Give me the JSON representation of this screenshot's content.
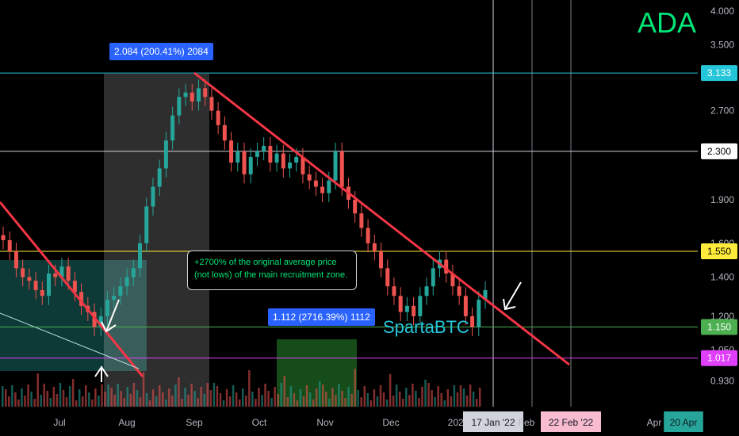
{
  "chart_data": {
    "type": "candlestick",
    "title": "ADA",
    "watermark": "SpartaBTC",
    "y_axis": {
      "min": 0.88,
      "max": 4.05,
      "scale": "log",
      "ticks": [
        0.93,
        1.05,
        1.2,
        1.4,
        1.6,
        1.9,
        2.3,
        2.7,
        3.133,
        3.5,
        4.0
      ],
      "tick_labels": [
        "0.930",
        "1.050",
        "1.200",
        "1.400",
        "1.600",
        "1.900",
        "2.300",
        "2.700",
        "3.133",
        "3.500",
        "4.000"
      ]
    },
    "x_axis": {
      "labels": [
        "Jul",
        "Aug",
        "Sep",
        "Oct",
        "Nov",
        "Dec",
        "2022",
        "17 Jan '22",
        "Feb",
        "22 Feb '22",
        "Apr",
        "20 Apr"
      ]
    },
    "price_levels": [
      {
        "price": 3.133,
        "label": "3.133",
        "color": "#26c6da"
      },
      {
        "price": 2.3,
        "label": "2.300",
        "color": "#d1d4dc"
      },
      {
        "price": 1.55,
        "label": "1.550",
        "color": "#ffeb3b"
      },
      {
        "price": 1.15,
        "label": "1.150",
        "color": "#4caf50"
      },
      {
        "price": 1.017,
        "label": "1.017",
        "color": "#e040fb"
      }
    ],
    "measurements": [
      {
        "label": "2.084 (200.41%) 2084",
        "color": "#2962ff"
      },
      {
        "label": "1.112 (2716.39%) 1112",
        "color": "#2962ff"
      }
    ],
    "annotation": {
      "lines": [
        "+2700% of the original average price",
        "(not lows) of the main recruitment zone."
      ],
      "color": "#00e676"
    },
    "close_series": [
      1.62,
      1.55,
      1.45,
      1.4,
      1.38,
      1.33,
      1.3,
      1.42,
      1.4,
      1.46,
      1.38,
      1.32,
      1.25,
      1.22,
      1.15,
      1.2,
      1.28,
      1.3,
      1.35,
      1.4,
      1.45,
      1.6,
      1.85,
      2.0,
      2.15,
      2.4,
      2.65,
      2.85,
      2.9,
      2.8,
      2.95,
      2.85,
      2.7,
      2.55,
      2.4,
      2.2,
      2.3,
      2.1,
      2.25,
      2.3,
      2.35,
      2.2,
      2.28,
      2.15,
      2.2,
      2.25,
      2.1,
      2.05,
      2.0,
      1.95,
      2.05,
      2.3,
      2.0,
      1.9,
      1.8,
      1.7,
      1.6,
      1.55,
      1.45,
      1.35,
      1.3,
      1.22,
      1.25,
      1.2,
      1.3,
      1.35,
      1.45,
      1.5,
      1.42,
      1.35,
      1.3,
      1.2,
      1.15,
      1.28,
      1.33
    ],
    "colors": {
      "up": "#26a69a",
      "down": "#ef5350",
      "trendline": "#f23645",
      "background": "#000000"
    },
    "grid": false
  }
}
